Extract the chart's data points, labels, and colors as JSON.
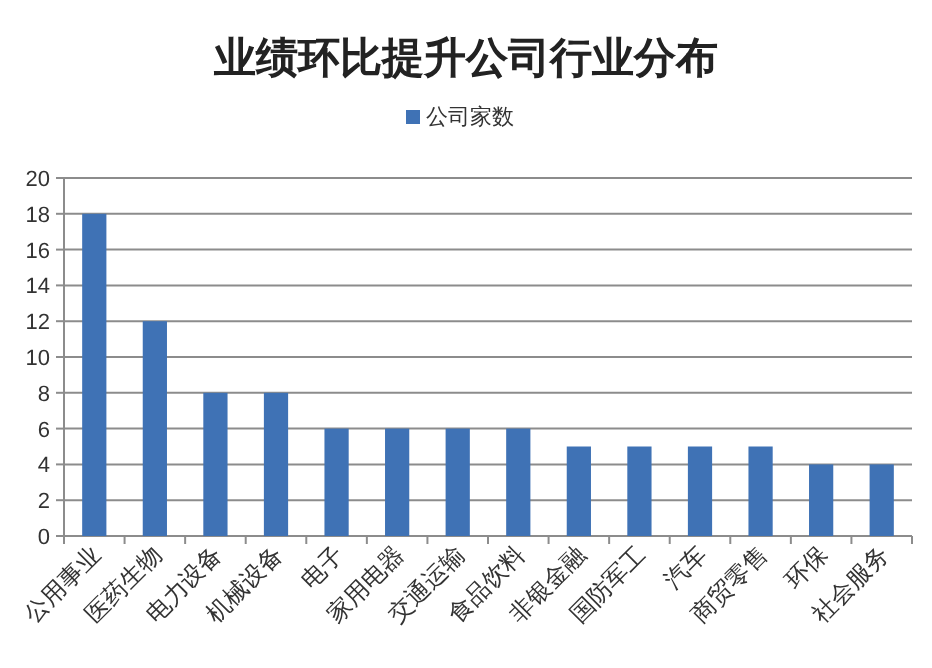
{
  "chart_data": {
    "type": "bar",
    "title": "业绩环比提升公司行业分布",
    "categories": [
      "公用事业",
      "医药生物",
      "电力设备",
      "机械设备",
      "电子",
      "家用电器",
      "交通运输",
      "食品饮料",
      "非银金融",
      "国防军工",
      "汽车",
      "商贸零售",
      "环保",
      "社会服务"
    ],
    "series": [
      {
        "name": "公司家数",
        "color": "#3f72b5",
        "values": [
          18,
          12,
          8,
          8,
          6,
          6,
          6,
          6,
          5,
          5,
          5,
          5,
          4,
          4
        ]
      }
    ],
    "ylim": [
      0,
      20
    ],
    "yticks": [
      0,
      2,
      4,
      6,
      8,
      10,
      12,
      14,
      16,
      18,
      20
    ],
    "grid": "y",
    "legend": "top"
  }
}
